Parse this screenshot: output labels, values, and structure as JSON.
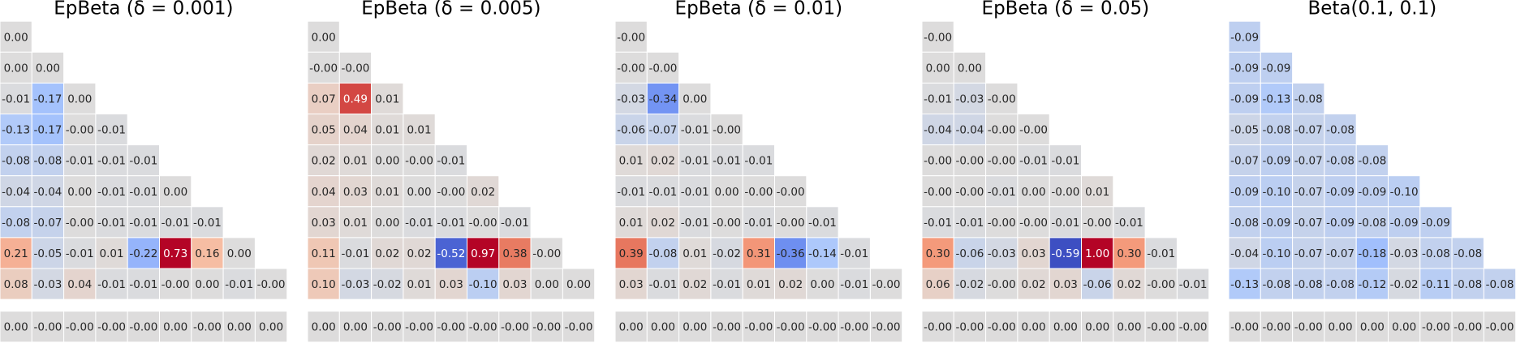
{
  "chart_data": [
    {
      "type": "heatmap",
      "title": "EpBeta (δ = 0.001)",
      "vmin": -0.6,
      "vmax": 0.6,
      "values": [
        [
          0
        ],
        [
          0,
          0
        ],
        [
          -0.01,
          -0.17,
          0
        ],
        [
          -0.13,
          -0.17,
          0,
          -0.01
        ],
        [
          -0.08,
          -0.08,
          -0.01,
          -0.01,
          -0.01
        ],
        [
          -0.04,
          -0.04,
          0,
          -0.01,
          -0.01,
          0
        ],
        [
          -0.08,
          -0.07,
          0,
          -0.01,
          -0.01,
          -0.01,
          -0.01
        ],
        [
          0.21,
          -0.05,
          -0.01,
          0.01,
          -0.22,
          0.73,
          0.16,
          0
        ],
        [
          0.08,
          -0.03,
          0.04,
          -0.01,
          -0.01,
          0,
          0,
          -0.01,
          0
        ],
        [
          0,
          0,
          0,
          0,
          0,
          0,
          0,
          0,
          0
        ]
      ],
      "value_labels": [
        [
          "0.00"
        ],
        [
          "0.00",
          "0.00"
        ],
        [
          "-0.01",
          "-0.17",
          "0.00"
        ],
        [
          "-0.13",
          "-0.17",
          "-0.00",
          "-0.01"
        ],
        [
          "-0.08",
          "-0.08",
          "-0.01",
          "-0.01",
          "-0.01"
        ],
        [
          "-0.04",
          "-0.04",
          "0.00",
          "-0.01",
          "-0.01",
          "0.00"
        ],
        [
          "-0.08",
          "-0.07",
          "-0.00",
          "-0.01",
          "-0.01",
          "-0.01",
          "-0.01"
        ],
        [
          "0.21",
          "-0.05",
          "-0.01",
          "0.01",
          "-0.22",
          "0.73",
          "0.16",
          "0.00"
        ],
        [
          "0.08",
          "-0.03",
          "0.04",
          "-0.01",
          "-0.01",
          "-0.00",
          "0.00",
          "-0.01",
          "-0.00"
        ],
        [
          "0.00",
          "-0.00",
          "-0.00",
          "-0.00",
          "-0.00",
          "0.00",
          "-0.00",
          "0.00",
          "0.00"
        ]
      ]
    },
    {
      "type": "heatmap",
      "title": "EpBeta (δ = 0.005)",
      "vmin": -0.6,
      "vmax": 0.6,
      "values": [
        [
          0
        ],
        [
          0,
          0
        ],
        [
          0.07,
          0.49,
          0.01
        ],
        [
          0.05,
          0.04,
          0.01,
          0.01
        ],
        [
          0.02,
          0.01,
          0,
          0,
          -0.01
        ],
        [
          0.04,
          0.03,
          0.01,
          0,
          0,
          0.02
        ],
        [
          0.03,
          0.01,
          0,
          -0.01,
          -0.01,
          0,
          -0.01
        ],
        [
          0.11,
          -0.01,
          0.02,
          0.02,
          -0.52,
          0.97,
          0.38,
          0
        ],
        [
          0.1,
          -0.03,
          -0.02,
          0.01,
          0.03,
          -0.1,
          0.03,
          0,
          0
        ],
        [
          0,
          0,
          0,
          0,
          0,
          0,
          0,
          0,
          0
        ]
      ],
      "value_labels": [
        [
          "0.00"
        ],
        [
          "-0.00",
          "-0.00"
        ],
        [
          "0.07",
          "0.49",
          "0.01"
        ],
        [
          "0.05",
          "0.04",
          "0.01",
          "0.01"
        ],
        [
          "0.02",
          "0.01",
          "0.00",
          "-0.00",
          "-0.01"
        ],
        [
          "0.04",
          "0.03",
          "0.01",
          "0.00",
          "-0.00",
          "0.02"
        ],
        [
          "0.03",
          "0.01",
          "0.00",
          "-0.01",
          "-0.01",
          "-0.00",
          "-0.01"
        ],
        [
          "0.11",
          "-0.01",
          "0.02",
          "0.02",
          "-0.52",
          "0.97",
          "0.38",
          "-0.00"
        ],
        [
          "0.10",
          "-0.03",
          "-0.02",
          "0.01",
          "0.03",
          "-0.10",
          "0.03",
          "0.00",
          "0.00"
        ],
        [
          "0.00",
          "0.00",
          "-0.00",
          "-0.00",
          "-0.00",
          "-0.00",
          "-0.00",
          "-0.00",
          "-0.00"
        ]
      ]
    },
    {
      "type": "heatmap",
      "title": "EpBeta (δ = 0.01)",
      "vmin": -0.6,
      "vmax": 0.6,
      "values": [
        [
          0
        ],
        [
          0,
          0
        ],
        [
          -0.03,
          -0.34,
          0
        ],
        [
          -0.06,
          -0.07,
          -0.01,
          0
        ],
        [
          0.01,
          0.02,
          -0.01,
          -0.01,
          -0.01
        ],
        [
          -0.01,
          -0.01,
          -0.01,
          0,
          0,
          0
        ],
        [
          0.01,
          0.02,
          -0.01,
          0,
          -0.01,
          0,
          -0.01
        ],
        [
          0.39,
          -0.08,
          0.01,
          -0.02,
          0.31,
          -0.36,
          -0.14,
          -0.01
        ],
        [
          0.03,
          -0.01,
          0.02,
          -0.01,
          0.01,
          0.02,
          0,
          -0.01,
          0
        ],
        [
          0,
          0,
          0,
          0,
          0,
          0,
          0,
          0,
          0
        ]
      ],
      "value_labels": [
        [
          "-0.00"
        ],
        [
          "-0.00",
          "-0.00"
        ],
        [
          "-0.03",
          "-0.34",
          "0.00"
        ],
        [
          "-0.06",
          "-0.07",
          "-0.01",
          "-0.00"
        ],
        [
          "0.01",
          "0.02",
          "-0.01",
          "-0.01",
          "-0.01"
        ],
        [
          "-0.01",
          "-0.01",
          "-0.01",
          "0.00",
          "-0.00",
          "-0.00"
        ],
        [
          "0.01",
          "0.02",
          "-0.01",
          "-0.00",
          "-0.01",
          "-0.00",
          "-0.01"
        ],
        [
          "0.39",
          "-0.08",
          "0.01",
          "-0.02",
          "0.31",
          "-0.36",
          "-0.14",
          "-0.01"
        ],
        [
          "0.03",
          "-0.01",
          "0.02",
          "-0.01",
          "0.01",
          "0.02",
          "0.00",
          "-0.01",
          "-0.00"
        ],
        [
          "0.00",
          "0.00",
          "0.00",
          "-0.00",
          "-0.00",
          "-0.00",
          "-0.00",
          "-0.00",
          "-0.00"
        ]
      ]
    },
    {
      "type": "heatmap",
      "title": "EpBeta (δ = 0.05)",
      "vmin": -0.6,
      "vmax": 0.6,
      "values": [
        [
          0
        ],
        [
          0,
          0
        ],
        [
          -0.01,
          -0.03,
          0
        ],
        [
          -0.04,
          -0.04,
          0,
          0
        ],
        [
          0,
          0,
          0,
          -0.01,
          -0.01
        ],
        [
          0,
          0,
          -0.01,
          0,
          0,
          0.01
        ],
        [
          -0.01,
          -0.01,
          0,
          0,
          -0.01,
          0,
          -0.01
        ],
        [
          0.3,
          -0.06,
          -0.03,
          0.03,
          -0.59,
          1.0,
          0.3,
          -0.01
        ],
        [
          0.06,
          -0.02,
          0,
          0.02,
          0.03,
          -0.06,
          0.02,
          0,
          -0.01
        ],
        [
          0,
          0,
          0,
          0,
          0,
          0,
          0,
          0,
          0
        ]
      ],
      "value_labels": [
        [
          "-0.00"
        ],
        [
          "0.00",
          "0.00"
        ],
        [
          "-0.01",
          "-0.03",
          "-0.00"
        ],
        [
          "-0.04",
          "-0.04",
          "-0.00",
          "-0.00"
        ],
        [
          "-0.00",
          "-0.00",
          "-0.00",
          "-0.01",
          "-0.01"
        ],
        [
          "-0.00",
          "-0.00",
          "-0.01",
          "0.00",
          "-0.00",
          "0.01"
        ],
        [
          "-0.01",
          "-0.01",
          "-0.00",
          "-0.00",
          "-0.01",
          "-0.00",
          "-0.01"
        ],
        [
          "0.30",
          "-0.06",
          "-0.03",
          "0.03",
          "-0.59",
          "1.00",
          "0.30",
          "-0.01"
        ],
        [
          "0.06",
          "-0.02",
          "-0.00",
          "0.02",
          "0.03",
          "-0.06",
          "0.02",
          "-0.00",
          "-0.01"
        ],
        [
          "-0.00",
          "-0.00",
          "-0.00",
          "0.00",
          "0.00",
          "0.00",
          "0.00",
          "-0.00",
          "-0.00"
        ]
      ]
    },
    {
      "type": "heatmap",
      "title": "Beta(0.1, 0.1)",
      "vmin": -0.6,
      "vmax": 0.6,
      "values": [
        [
          -0.09
        ],
        [
          -0.09,
          -0.09
        ],
        [
          -0.09,
          -0.13,
          -0.08
        ],
        [
          -0.05,
          -0.08,
          -0.07,
          -0.08
        ],
        [
          -0.07,
          -0.09,
          -0.07,
          -0.08,
          -0.08
        ],
        [
          -0.09,
          -0.1,
          -0.07,
          -0.09,
          -0.09,
          -0.1
        ],
        [
          -0.08,
          -0.09,
          -0.07,
          -0.09,
          -0.08,
          -0.09,
          -0.09
        ],
        [
          -0.04,
          -0.1,
          -0.07,
          -0.07,
          -0.18,
          -0.03,
          -0.08,
          -0.08
        ],
        [
          -0.13,
          -0.08,
          -0.08,
          -0.08,
          -0.12,
          -0.02,
          -0.11,
          -0.08,
          -0.08
        ],
        [
          0,
          0,
          0,
          0,
          0,
          0,
          0,
          0,
          0
        ]
      ],
      "value_labels": [
        [
          "-0.09"
        ],
        [
          "-0.09",
          "-0.09"
        ],
        [
          "-0.09",
          "-0.13",
          "-0.08"
        ],
        [
          "-0.05",
          "-0.08",
          "-0.07",
          "-0.08"
        ],
        [
          "-0.07",
          "-0.09",
          "-0.07",
          "-0.08",
          "-0.08"
        ],
        [
          "-0.09",
          "-0.10",
          "-0.07",
          "-0.09",
          "-0.09",
          "-0.10"
        ],
        [
          "-0.08",
          "-0.09",
          "-0.07",
          "-0.09",
          "-0.08",
          "-0.09",
          "-0.09"
        ],
        [
          "-0.04",
          "-0.10",
          "-0.07",
          "-0.07",
          "-0.18",
          "-0.03",
          "-0.08",
          "-0.08"
        ],
        [
          "-0.13",
          "-0.08",
          "-0.08",
          "-0.08",
          "-0.12",
          "-0.02",
          "-0.11",
          "-0.08",
          "-0.08"
        ],
        [
          "-0.00",
          "-0.00",
          "-0.00",
          "0.00",
          "0.00",
          "0.00",
          "-0.00",
          "-0.00",
          "-0.00"
        ]
      ]
    }
  ]
}
